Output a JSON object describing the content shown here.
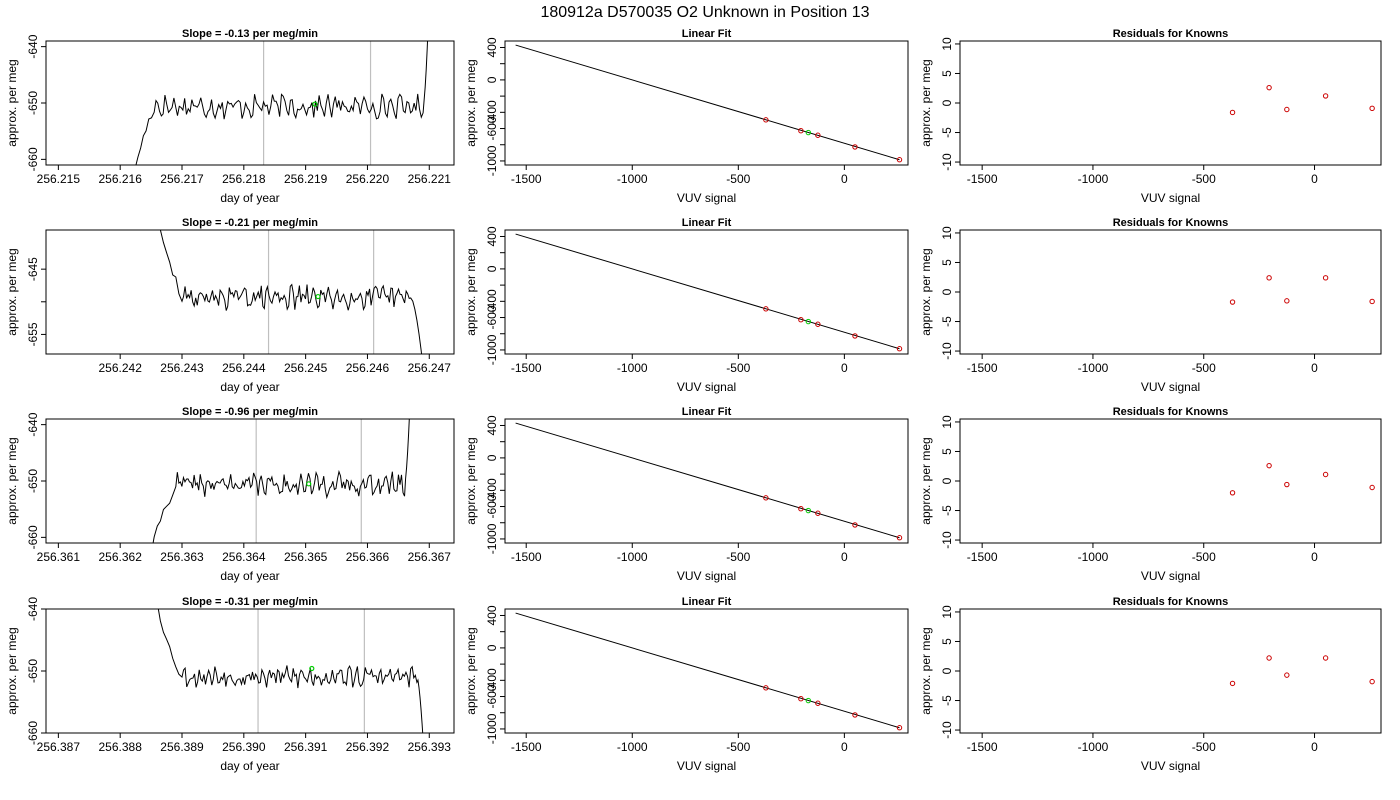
{
  "figure": {
    "title": "180912a      D570035   O2 Unknown in Position  13",
    "colors": {
      "line": "#000000",
      "known": "#cc0000",
      "unknown": "#00cc00",
      "vline": "#bfbfbf"
    }
  },
  "chart_data": [
    {
      "type": "line",
      "row": 0,
      "title": "Slope =  -0.13  per meg/min",
      "xlabel": "day of year",
      "ylabel": "approx. per meg",
      "xlim": [
        256.2148,
        256.2214
      ],
      "ylim": [
        -661,
        -639
      ],
      "xticks": [
        256.215,
        256.216,
        256.217,
        256.218,
        256.219,
        256.22,
        256.221
      ],
      "xtick_labels": [
        "256.215",
        "256.216",
        "256.217",
        "256.218",
        "256.219",
        "256.220",
        "256.221"
      ],
      "yticks": [
        -660,
        -650,
        -640
      ],
      "ytick_labels": [
        "-660",
        "-650",
        "-640"
      ],
      "trace": {
        "x_start": 256.2162,
        "x_end": 256.221,
        "level": -650.6,
        "amp": 1.5,
        "seed": 17,
        "lead_from": -665,
        "lead_len": 0.00035,
        "tail_to": -631,
        "tail_len": 0.0001
      },
      "vlines": [
        256.21832,
        256.22005
      ],
      "marker": {
        "x": 256.21915,
        "y": -650.2
      }
    },
    {
      "type": "line",
      "row": 1,
      "title": "Slope =  -0.21  per meg/min",
      "xlabel": "day of year",
      "ylabel": "approx. per meg",
      "xlim": [
        256.2408,
        256.2474
      ],
      "ylim": [
        -658,
        -639
      ],
      "xticks": [
        256.242,
        256.243,
        256.244,
        256.245,
        256.246,
        256.247
      ],
      "xtick_labels": [
        "256.242",
        "256.243",
        "256.244",
        "256.245",
        "256.246",
        "256.247"
      ],
      "yticks": [
        -655,
        -650,
        -645
      ],
      "ytick_labels": [
        "-655",
        "-645"
      ],
      "trace": {
        "x_start": 256.2426,
        "x_end": 256.2469,
        "level": -649.3,
        "amp": 1.3,
        "seed": 29,
        "lead_from": -636,
        "lead_len": 0.0004,
        "tail_to": -660,
        "tail_len": 0.0002
      },
      "vlines": [
        256.2444,
        256.2461
      ],
      "marker": {
        "x": 256.2452,
        "y": -649.2
      }
    },
    {
      "type": "line",
      "row": 2,
      "title": "Slope =  -0.96  per meg/min",
      "xlabel": "day of year",
      "ylabel": "approx. per meg",
      "xlim": [
        256.3608,
        256.3674
      ],
      "ylim": [
        -661,
        -639
      ],
      "xticks": [
        256.361,
        256.362,
        256.363,
        256.364,
        256.365,
        256.366,
        256.367
      ],
      "xtick_labels": [
        "256.361",
        "256.362",
        "256.363",
        "256.364",
        "256.365",
        "256.366",
        "256.367"
      ],
      "yticks": [
        -660,
        -650,
        -640
      ],
      "ytick_labels": [
        "-660",
        "-650",
        "-640"
      ],
      "trace": {
        "x_start": 256.3625,
        "x_end": 256.3667,
        "level": -650.6,
        "amp": 1.5,
        "seed": 41,
        "lead_from": -663,
        "lead_len": 0.0004,
        "tail_to": -633,
        "tail_len": 0.0001
      },
      "vlines": [
        256.3642,
        256.3659
      ],
      "marker": {
        "x": 256.36505,
        "y": -650.5
      }
    },
    {
      "type": "line",
      "row": 3,
      "title": "Slope =  -0.31  per meg/min",
      "xlabel": "day of year",
      "ylabel": "approx. per meg",
      "xlim": [
        256.3868,
        256.3934
      ],
      "ylim": [
        -660,
        -640
      ],
      "xticks": [
        256.387,
        256.388,
        256.389,
        256.39,
        256.391,
        256.392,
        256.393
      ],
      "xtick_labels": [
        "256.387",
        "256.388",
        "256.389",
        "256.390",
        "256.391",
        "256.392",
        "256.393"
      ],
      "yticks": [
        -660,
        -650,
        -640
      ],
      "ytick_labels": [
        "-660",
        "-650",
        "-640"
      ],
      "trace": {
        "x_start": 256.3886,
        "x_end": 256.3929,
        "level": -650.9,
        "amp": 1.3,
        "seed": 53,
        "lead_from": -639,
        "lead_len": 0.0004,
        "tail_to": -661,
        "tail_len": 0.0001
      },
      "vlines": [
        256.39023,
        256.39195
      ],
      "marker": {
        "x": 256.3911,
        "y": -649.6
      }
    },
    {
      "type": "scatter",
      "row": 0,
      "title": "Linear Fit",
      "xlabel": "VUV signal",
      "ylabel": "approx. per meg",
      "xlim": [
        -1600,
        300
      ],
      "ylim": [
        -1050,
        480
      ],
      "xticks": [
        -1500,
        -1000,
        -500,
        0
      ],
      "xtick_labels": [
        "-1500",
        "-1000",
        "-500",
        "0"
      ],
      "yticks": [
        -1000,
        -800,
        -600,
        -400,
        -200,
        0,
        200,
        400
      ],
      "ytick_labels": [
        "-1000",
        "-600",
        "-400",
        "0",
        "400"
      ],
      "fit_line": {
        "x": [
          -1550,
          260
        ],
        "y": [
          430,
          -985
        ]
      },
      "known_points": [
        [
          -370,
          -493
        ],
        [
          -205,
          -627
        ],
        [
          -125,
          -683
        ],
        [
          50,
          -827
        ],
        [
          260,
          -985
        ]
      ],
      "unknown_points": [
        [
          -170,
          -650
        ]
      ]
    },
    {
      "type": "scatter",
      "row": 1,
      "title": "Linear Fit",
      "xlabel": "VUV signal",
      "ylabel": "approx. per meg",
      "xlim": [
        -1600,
        300
      ],
      "ylim": [
        -1050,
        480
      ],
      "xticks": [
        -1500,
        -1000,
        -500,
        0
      ],
      "xtick_labels": [
        "-1500",
        "-1000",
        "-500",
        "0"
      ],
      "yticks": [
        -1000,
        -800,
        -600,
        -400,
        -200,
        0,
        200,
        400
      ],
      "ytick_labels": [
        "-1000",
        "-600",
        "-400",
        "0",
        "400"
      ],
      "fit_line": {
        "x": [
          -1550,
          260
        ],
        "y": [
          430,
          -985
        ]
      },
      "known_points": [
        [
          -370,
          -493
        ],
        [
          -205,
          -627
        ],
        [
          -125,
          -683
        ],
        [
          50,
          -827
        ],
        [
          260,
          -985
        ]
      ],
      "unknown_points": [
        [
          -170,
          -650
        ]
      ]
    },
    {
      "type": "scatter",
      "row": 2,
      "title": "Linear Fit",
      "xlabel": "VUV signal",
      "ylabel": "approx. per meg",
      "xlim": [
        -1600,
        300
      ],
      "ylim": [
        -1050,
        480
      ],
      "xticks": [
        -1500,
        -1000,
        -500,
        0
      ],
      "xtick_labels": [
        "-1500",
        "-1000",
        "-500",
        "0"
      ],
      "yticks": [
        -1000,
        -800,
        -600,
        -400,
        -200,
        0,
        200,
        400
      ],
      "ytick_labels": [
        "-1000",
        "-600",
        "-400",
        "0",
        "400"
      ],
      "fit_line": {
        "x": [
          -1550,
          260
        ],
        "y": [
          430,
          -985
        ]
      },
      "known_points": [
        [
          -370,
          -493
        ],
        [
          -205,
          -627
        ],
        [
          -125,
          -683
        ],
        [
          50,
          -827
        ],
        [
          260,
          -985
        ]
      ],
      "unknown_points": [
        [
          -170,
          -650
        ]
      ]
    },
    {
      "type": "scatter",
      "row": 3,
      "title": "Linear Fit",
      "xlabel": "VUV signal",
      "ylabel": "approx. per meg",
      "xlim": [
        -1600,
        300
      ],
      "ylim": [
        -1050,
        480
      ],
      "xticks": [
        -1500,
        -1000,
        -500,
        0
      ],
      "xtick_labels": [
        "-1500",
        "-1000",
        "-500",
        "0"
      ],
      "yticks": [
        -1000,
        -800,
        -600,
        -400,
        -200,
        0,
        200,
        400
      ],
      "ytick_labels": [
        "-1000",
        "-600",
        "-400",
        "0",
        "400"
      ],
      "fit_line": {
        "x": [
          -1550,
          260
        ],
        "y": [
          430,
          -985
        ]
      },
      "known_points": [
        [
          -370,
          -493
        ],
        [
          -205,
          -627
        ],
        [
          -125,
          -683
        ],
        [
          50,
          -827
        ],
        [
          260,
          -985
        ]
      ],
      "unknown_points": [
        [
          -170,
          -650
        ]
      ]
    },
    {
      "type": "scatter",
      "row": 0,
      "title": "Residuals for Knowns",
      "xlabel": "VUV signal",
      "ylabel": "approx. per meg",
      "xlim": [
        -1600,
        300
      ],
      "ylim": [
        -10.5,
        10.5
      ],
      "xticks": [
        -1500,
        -1000,
        -500,
        0
      ],
      "xtick_labels": [
        "-1500",
        "-1000",
        "-500",
        "0"
      ],
      "yticks": [
        -10,
        -5,
        0,
        5,
        10
      ],
      "ytick_labels": [
        "-10",
        "-5",
        "0",
        "5",
        "10"
      ],
      "known_points": [
        [
          -370,
          -1.6
        ],
        [
          -205,
          2.6
        ],
        [
          -125,
          -1.1
        ],
        [
          50,
          1.2
        ],
        [
          260,
          -0.9
        ]
      ]
    },
    {
      "type": "scatter",
      "row": 1,
      "title": "Residuals for Knowns",
      "xlabel": "VUV signal",
      "ylabel": "approx. per meg",
      "xlim": [
        -1600,
        300
      ],
      "ylim": [
        -10.5,
        10.5
      ],
      "xticks": [
        -1500,
        -1000,
        -500,
        0
      ],
      "xtick_labels": [
        "-1500",
        "-1000",
        "-500",
        "0"
      ],
      "yticks": [
        -10,
        -5,
        0,
        5,
        10
      ],
      "ytick_labels": [
        "-10",
        "-5",
        "0",
        "5",
        "10"
      ],
      "known_points": [
        [
          -370,
          -1.7
        ],
        [
          -205,
          2.4
        ],
        [
          -125,
          -1.5
        ],
        [
          50,
          2.4
        ],
        [
          260,
          -1.6
        ]
      ]
    },
    {
      "type": "scatter",
      "row": 2,
      "title": "Residuals for Knowns",
      "xlabel": "VUV signal",
      "ylabel": "approx. per meg",
      "xlim": [
        -1600,
        300
      ],
      "ylim": [
        -10.5,
        10.5
      ],
      "xticks": [
        -1500,
        -1000,
        -500,
        0
      ],
      "xtick_labels": [
        "-1500",
        "-1000",
        "-500",
        "0"
      ],
      "yticks": [
        -10,
        -5,
        0,
        5,
        10
      ],
      "ytick_labels": [
        "-10",
        "-5",
        "0",
        "5",
        "10"
      ],
      "known_points": [
        [
          -370,
          -2.0
        ],
        [
          -205,
          2.6
        ],
        [
          -125,
          -0.6
        ],
        [
          50,
          1.1
        ],
        [
          260,
          -1.1
        ]
      ]
    },
    {
      "type": "scatter",
      "row": 3,
      "title": "Residuals for Knowns",
      "xlabel": "VUV signal",
      "ylabel": "approx. per meg",
      "xlim": [
        -1600,
        300
      ],
      "ylim": [
        -10.5,
        10.5
      ],
      "xticks": [
        -1500,
        -1000,
        -500,
        0
      ],
      "xtick_labels": [
        "-1500",
        "-1000",
        "-500",
        "0"
      ],
      "yticks": [
        -10,
        -5,
        0,
        5,
        10
      ],
      "ytick_labels": [
        "-10",
        "-5",
        "0",
        "5",
        "10"
      ],
      "known_points": [
        [
          -370,
          -2.1
        ],
        [
          -205,
          2.2
        ],
        [
          -125,
          -0.7
        ],
        [
          50,
          2.2
        ],
        [
          260,
          -1.8
        ]
      ]
    }
  ]
}
